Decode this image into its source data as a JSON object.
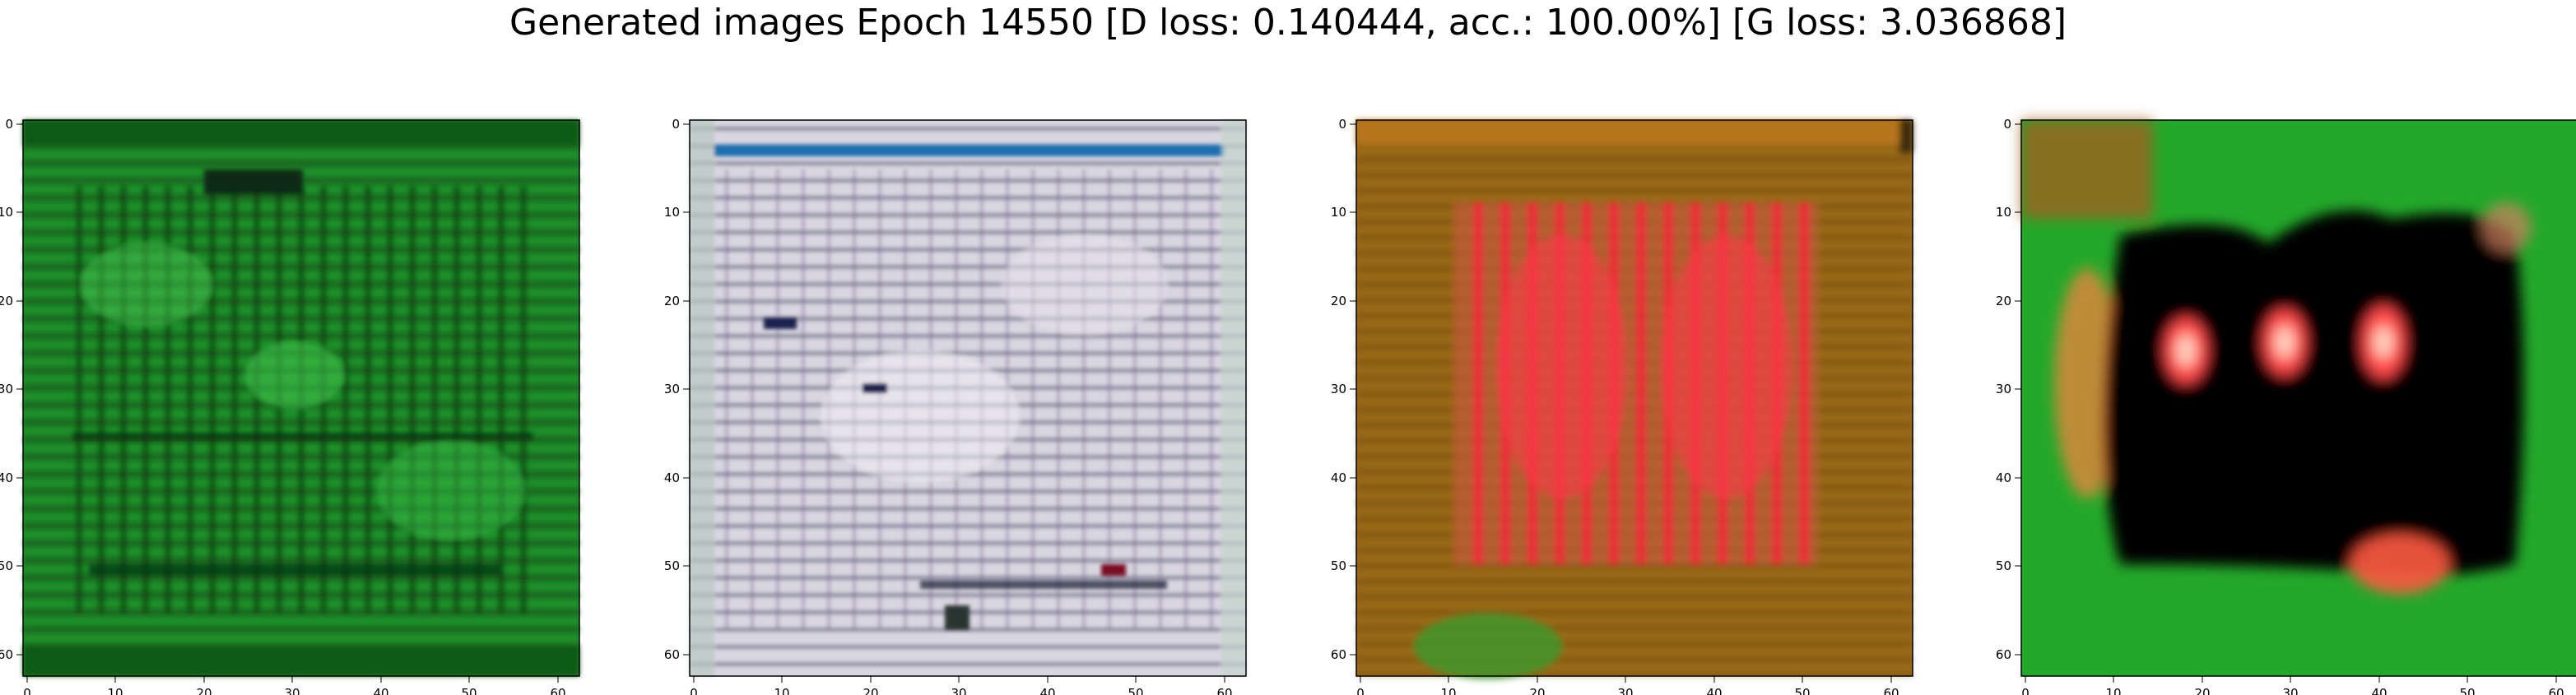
{
  "figure": {
    "title": "Generated images Epoch 14550 [D loss: 0.140444, acc.: 100.00%] [G loss: 3.036868]"
  },
  "axes": {
    "x_ticks": [
      "0",
      "10",
      "20",
      "30",
      "40",
      "50",
      "60"
    ],
    "y_ticks": [
      "0",
      "10",
      "20",
      "30",
      "40",
      "50",
      "60"
    ],
    "range": [
      0,
      63
    ]
  },
  "panels": [
    {
      "id": "panel-1",
      "description_colors": {
        "base": "#1e8f2a",
        "dark": "#0a3d12",
        "light": "#3fbf4a"
      }
    },
    {
      "id": "panel-2",
      "description_colors": {
        "base": "#d9d6e0",
        "dark": "#2a2f45",
        "light": "#f3f0f7"
      }
    },
    {
      "id": "panel-3",
      "description_colors": {
        "base": "#9a6a18",
        "accent": "#ff2a3a",
        "light": "#e0b060"
      }
    },
    {
      "id": "panel-4",
      "description_colors": {
        "base": "#23a82a",
        "dark": "#000000",
        "accent": "#ff5050"
      }
    }
  ]
}
